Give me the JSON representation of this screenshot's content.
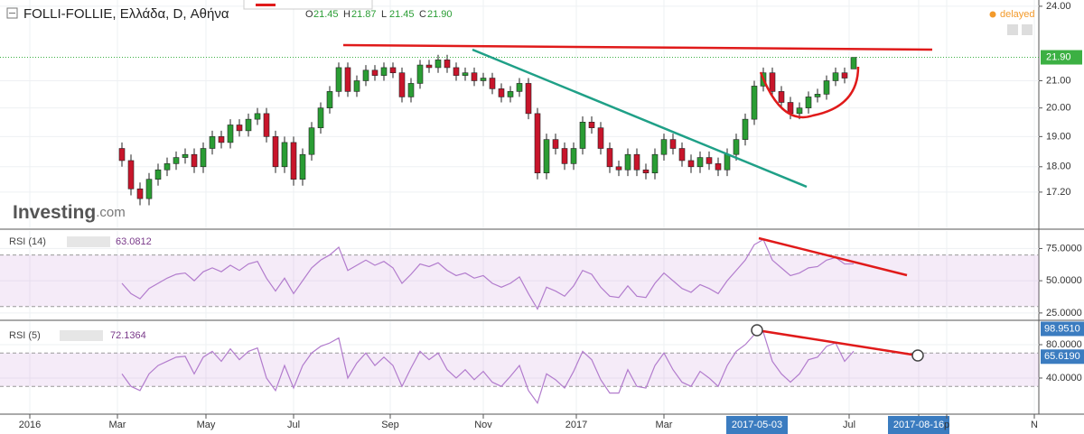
{
  "chart_data": [
    {
      "type": "candlestick",
      "title": "FOLLI-FOLLIE, Ελλάδα, D, Αθήνα",
      "header_keys": [
        "O",
        "H",
        "L",
        "C"
      ],
      "header_values": [
        "21.45",
        "21.87",
        "21.45",
        "21.90"
      ],
      "status": "delayed",
      "watermark": [
        "Investing",
        ".com"
      ],
      "open": [
        18.6,
        18.2,
        17.3,
        17.0,
        17.6,
        17.9,
        18.1,
        18.3,
        18.4,
        18.0,
        18.6,
        19.0,
        18.8,
        19.4,
        19.2,
        19.6,
        19.8,
        19.0,
        18.0,
        18.8,
        17.6,
        18.4,
        19.3,
        20.0,
        20.6,
        21.5,
        20.6,
        21.0,
        21.4,
        21.2,
        21.5,
        21.3,
        20.4,
        20.9,
        21.6,
        21.5,
        21.8,
        21.5,
        21.2,
        21.3,
        21.0,
        21.1,
        20.7,
        20.4,
        20.6,
        20.9,
        19.8,
        17.8,
        18.9,
        18.6,
        18.1,
        18.6,
        19.5,
        19.3,
        18.6,
        18.0,
        17.9,
        18.4,
        17.9,
        17.8,
        18.4,
        18.9,
        18.6,
        18.2,
        18.0,
        18.3,
        18.1,
        17.9,
        18.4,
        18.9,
        19.6,
        20.8,
        21.3,
        20.6,
        20.2,
        19.8,
        20.0,
        20.4,
        20.5,
        21.0,
        21.3,
        21.45
      ],
      "high": [
        18.8,
        18.4,
        17.5,
        17.8,
        18.1,
        18.3,
        18.5,
        18.6,
        18.6,
        18.8,
        19.2,
        19.2,
        19.6,
        19.6,
        19.8,
        20.0,
        20.0,
        19.2,
        19.0,
        19.0,
        18.6,
        19.5,
        20.2,
        20.8,
        21.7,
        21.7,
        21.2,
        21.6,
        21.6,
        21.7,
        21.7,
        21.5,
        21.1,
        21.8,
        21.8,
        22.0,
        22.0,
        21.7,
        21.5,
        21.5,
        21.3,
        21.3,
        20.9,
        20.8,
        21.1,
        21.1,
        20.0,
        19.1,
        19.1,
        18.8,
        18.8,
        19.7,
        19.7,
        19.5,
        18.8,
        18.2,
        18.6,
        18.6,
        18.1,
        18.6,
        19.1,
        19.1,
        18.8,
        18.4,
        18.5,
        18.5,
        18.3,
        18.6,
        19.1,
        19.8,
        21.0,
        21.5,
        21.5,
        20.8,
        20.4,
        20.2,
        20.6,
        20.7,
        21.2,
        21.5,
        21.5,
        21.87
      ],
      "low": [
        18.0,
        17.1,
        16.8,
        16.8,
        17.4,
        17.7,
        17.9,
        18.1,
        17.8,
        17.8,
        18.4,
        18.6,
        18.6,
        19.0,
        19.0,
        19.4,
        18.8,
        17.8,
        17.8,
        17.4,
        17.4,
        18.2,
        19.1,
        19.8,
        20.4,
        20.4,
        20.4,
        20.8,
        21.0,
        21.0,
        21.1,
        20.2,
        20.2,
        20.7,
        21.3,
        21.3,
        21.3,
        21.0,
        21.0,
        20.8,
        20.8,
        20.5,
        20.2,
        20.2,
        20.4,
        19.6,
        17.6,
        17.6,
        18.4,
        17.9,
        17.9,
        18.4,
        19.1,
        18.4,
        17.8,
        17.7,
        17.7,
        17.7,
        17.6,
        17.6,
        18.2,
        18.4,
        18.0,
        17.8,
        17.8,
        17.9,
        17.7,
        17.7,
        18.2,
        18.7,
        19.4,
        20.6,
        20.4,
        20.0,
        19.6,
        19.6,
        19.8,
        20.2,
        20.3,
        20.8,
        20.9,
        21.45
      ],
      "close": [
        18.2,
        17.3,
        17.0,
        17.6,
        17.9,
        18.1,
        18.3,
        18.4,
        18.0,
        18.6,
        19.0,
        18.8,
        19.4,
        19.2,
        19.6,
        19.8,
        19.0,
        18.0,
        18.8,
        17.6,
        18.4,
        19.3,
        20.0,
        20.6,
        21.5,
        20.6,
        21.0,
        21.4,
        21.2,
        21.5,
        21.3,
        20.4,
        20.9,
        21.6,
        21.5,
        21.8,
        21.5,
        21.2,
        21.3,
        21.0,
        21.1,
        20.7,
        20.4,
        20.6,
        20.9,
        19.8,
        17.8,
        18.9,
        18.6,
        18.1,
        18.6,
        19.5,
        19.3,
        18.6,
        18.0,
        17.9,
        18.4,
        17.9,
        17.8,
        18.4,
        18.9,
        18.6,
        18.2,
        18.0,
        18.3,
        18.1,
        17.9,
        18.4,
        18.9,
        19.6,
        20.8,
        21.3,
        20.6,
        20.2,
        19.8,
        20.0,
        20.4,
        20.5,
        21.0,
        21.3,
        21.1,
        21.9
      ],
      "up_color": "#2a9d34",
      "down_color": "#c8152b",
      "log_scale": true,
      "ylim": [
        16.12,
        24.27
      ],
      "yticks": [
        {
          "value": 17.2,
          "label": "17.20"
        },
        {
          "value": 18,
          "label": "18.00"
        },
        {
          "value": 19,
          "label": "19.00"
        },
        {
          "value": 20,
          "label": "20.00"
        },
        {
          "value": 21,
          "label": "21.00"
        },
        {
          "value": 24,
          "label": "24.00"
        }
      ],
      "last_price": {
        "value": 21.9,
        "label": "21.90"
      },
      "xlim": [
        -13.5,
        101.5
      ],
      "xticks": [
        {
          "value": -10.2,
          "label": "2016"
        },
        {
          "value": -0.5,
          "label": "Mar"
        },
        {
          "value": 9.3,
          "label": "May"
        },
        {
          "value": 19,
          "label": "Jul"
        },
        {
          "value": 29.7,
          "label": "Sep"
        },
        {
          "value": 40,
          "label": "Nov"
        },
        {
          "value": 50.3,
          "label": "2017"
        },
        {
          "value": 60,
          "label": "Mar"
        },
        {
          "value": 70.3,
          "label": "2017-05-03"
        },
        {
          "value": 80.5,
          "label": "Jul"
        },
        {
          "value": 88.2,
          "label": "2017-08-16"
        },
        {
          "value": 91.3,
          "label": "p"
        },
        {
          "value": 101,
          "label": "N"
        }
      ],
      "highlighted_xticks": [
        8,
        10
      ]
    },
    {
      "type": "line",
      "title": "RSI (14)",
      "legend_value": "63.0812",
      "color": "#b27ccd",
      "values": [
        48,
        40,
        36,
        44,
        48,
        52,
        55,
        56,
        50,
        57,
        60,
        57,
        62,
        58,
        63,
        65,
        52,
        42,
        52,
        40,
        50,
        60,
        66,
        70,
        76,
        58,
        62,
        66,
        62,
        65,
        60,
        48,
        55,
        63,
        61,
        64,
        58,
        54,
        56,
        52,
        54,
        48,
        45,
        48,
        53,
        40,
        28,
        45,
        42,
        38,
        46,
        58,
        55,
        45,
        38,
        37,
        46,
        38,
        37,
        48,
        56,
        50,
        44,
        41,
        47,
        44,
        40,
        50,
        58,
        66,
        78,
        82,
        66,
        60,
        54,
        56,
        60,
        61,
        66,
        68,
        63,
        63.0812
      ],
      "ylim": [
        20,
        88.6
      ],
      "yticks": [
        {
          "value": 25,
          "label": "25.0000"
        },
        {
          "value": 50,
          "label": "50.0000"
        },
        {
          "value": 75,
          "label": "75.0000"
        }
      ],
      "bands": [
        30,
        70
      ]
    },
    {
      "type": "line",
      "title": "RSI (5)",
      "legend_value": "72.1364",
      "color": "#b27ccd",
      "values": [
        45,
        30,
        25,
        45,
        55,
        60,
        65,
        66,
        45,
        65,
        72,
        60,
        75,
        62,
        72,
        76,
        40,
        25,
        55,
        28,
        55,
        70,
        78,
        82,
        88,
        40,
        58,
        70,
        55,
        65,
        55,
        30,
        52,
        72,
        62,
        70,
        50,
        40,
        50,
        38,
        48,
        35,
        30,
        42,
        55,
        25,
        10,
        45,
        38,
        28,
        48,
        72,
        62,
        38,
        22,
        22,
        50,
        30,
        28,
        55,
        70,
        50,
        35,
        30,
        48,
        40,
        30,
        55,
        72,
        80,
        92,
        95,
        60,
        45,
        35,
        45,
        62,
        65,
        78,
        82,
        60,
        72.1364
      ],
      "ylim": [
        -2.2,
        108.1
      ],
      "yticks": [
        {
          "value": 40,
          "label": "40.0000"
        },
        {
          "value": 80,
          "label": "80.0000"
        }
      ],
      "price_labels": [
        {
          "value": 98.951,
          "label": "98.9510"
        },
        {
          "value": 65.619,
          "label": "65.6190"
        }
      ],
      "bands": [
        30,
        70
      ]
    }
  ]
}
